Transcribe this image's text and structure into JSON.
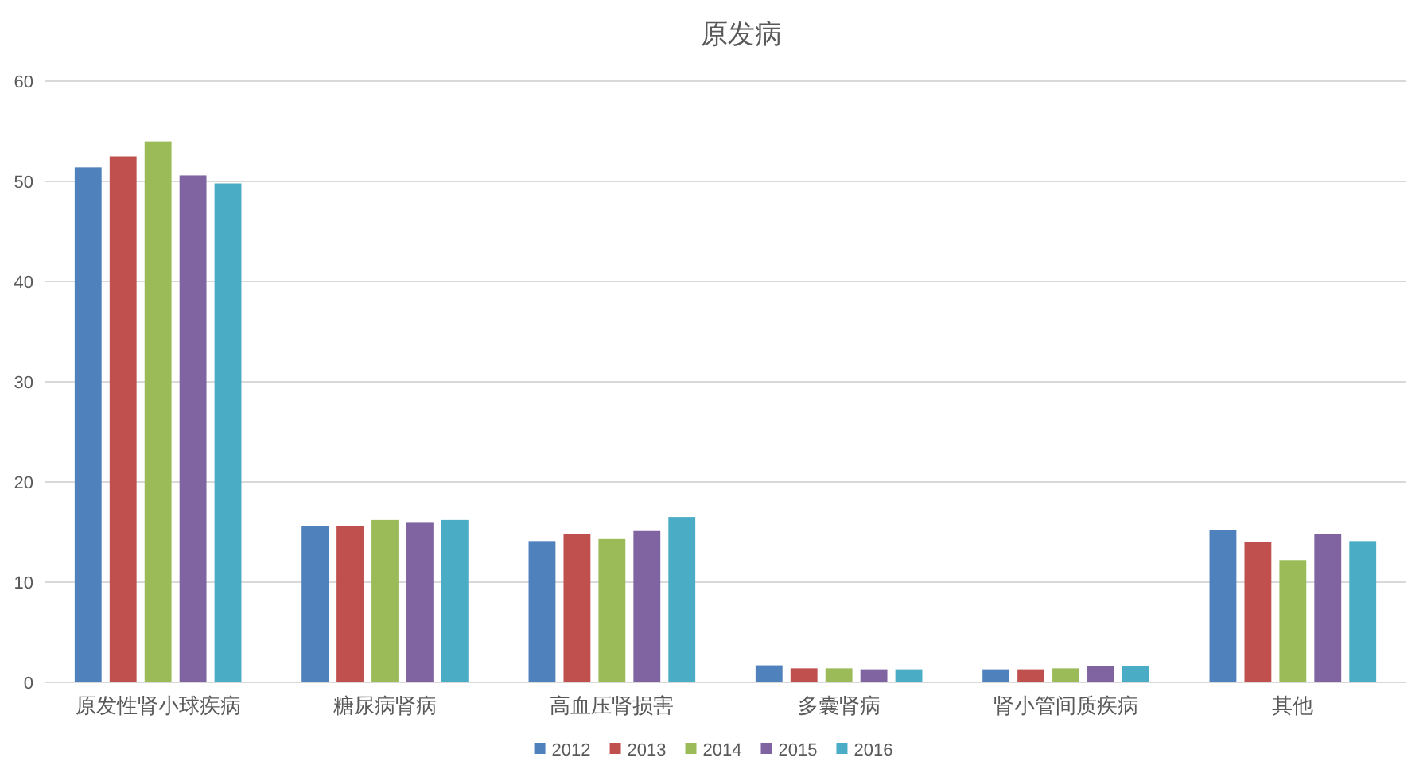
{
  "chart_data": {
    "type": "bar",
    "title": "原发病",
    "categories": [
      "原发性肾小球疾病",
      "糖尿病肾病",
      "高血压肾损害",
      "多囊肾病",
      "肾小管间质疾病",
      "其他"
    ],
    "series": [
      {
        "name": "2012",
        "color": "#4f81bd",
        "values": [
          51.4,
          15.6,
          14.1,
          1.7,
          1.3,
          15.2
        ]
      },
      {
        "name": "2013",
        "color": "#c0504d",
        "values": [
          52.5,
          15.6,
          14.8,
          1.4,
          1.3,
          14.0
        ]
      },
      {
        "name": "2014",
        "color": "#9bbb59",
        "values": [
          54.0,
          16.2,
          14.3,
          1.4,
          1.4,
          12.2
        ]
      },
      {
        "name": "2015",
        "color": "#8064a2",
        "values": [
          50.6,
          16.0,
          15.1,
          1.3,
          1.6,
          14.8
        ]
      },
      {
        "name": "2016",
        "color": "#4bacc6",
        "values": [
          49.8,
          16.2,
          16.5,
          1.3,
          1.6,
          14.1
        ]
      }
    ],
    "ylim": [
      0,
      60
    ],
    "yticks": [
      0,
      10,
      20,
      30,
      40,
      50,
      60
    ],
    "grid": "y",
    "legend": "bottom"
  }
}
